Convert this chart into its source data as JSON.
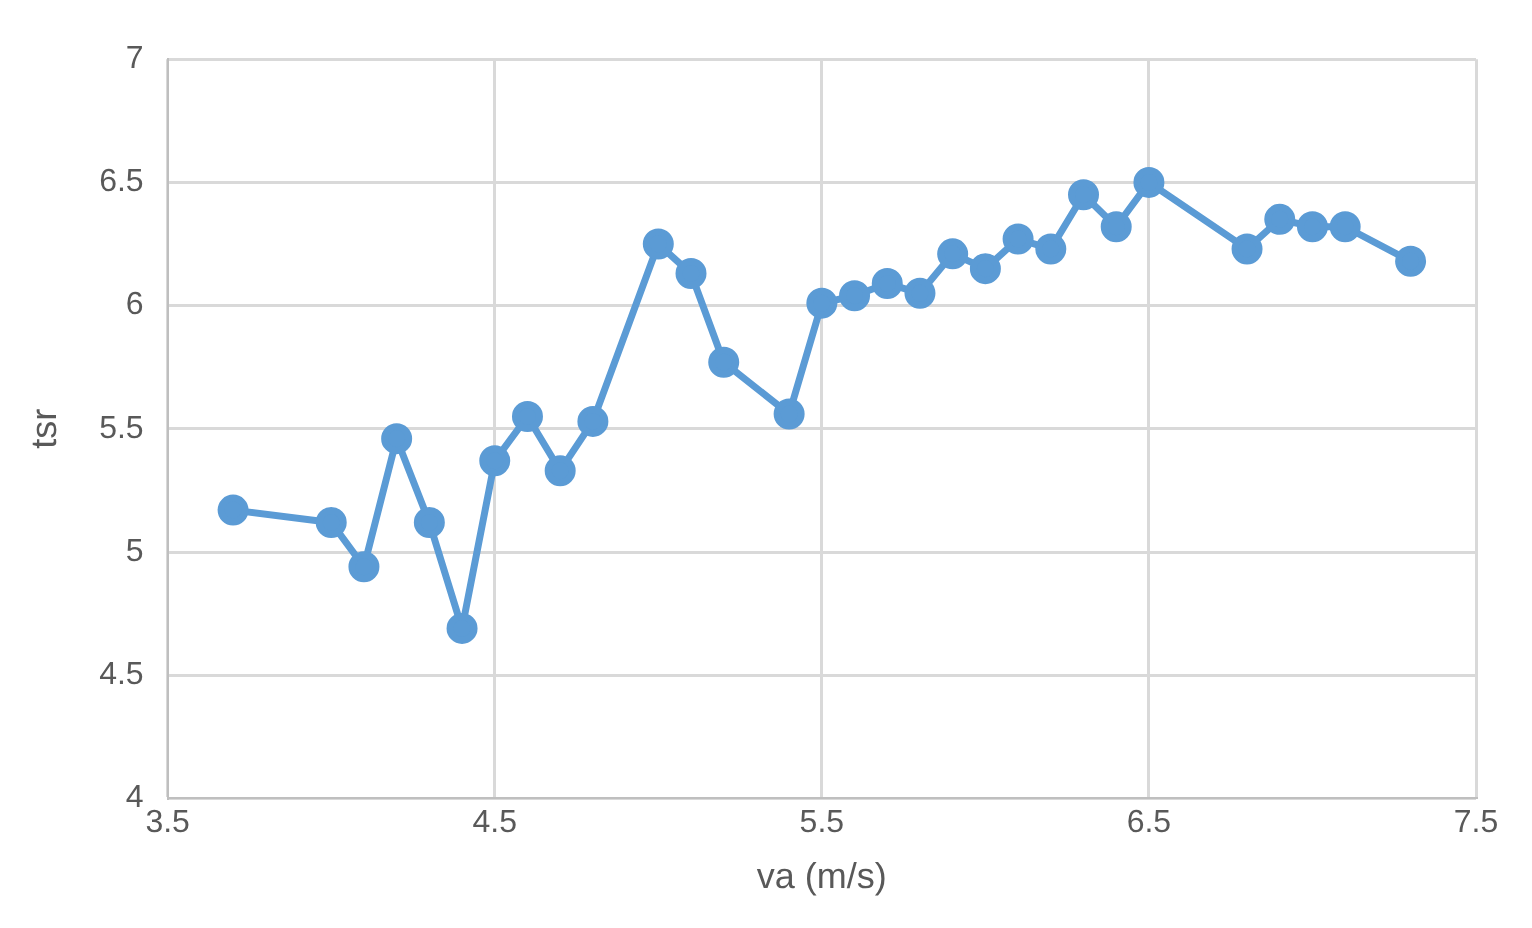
{
  "chart_data": {
    "type": "line",
    "xlabel": "va (m/s)",
    "ylabel": "tsr",
    "x": [
      3.7,
      4.0,
      4.1,
      4.2,
      4.3,
      4.4,
      4.5,
      4.6,
      4.7,
      4.8,
      5.0,
      5.1,
      5.2,
      5.4,
      5.5,
      5.6,
      5.7,
      5.8,
      5.9,
      6.0,
      6.1,
      6.2,
      6.3,
      6.4,
      6.5,
      6.8,
      6.9,
      7.0,
      7.1,
      7.3
    ],
    "series": [
      {
        "color": "#5b9bd5",
        "values": [
          5.17,
          5.12,
          4.94,
          5.46,
          5.12,
          4.69,
          5.37,
          5.55,
          5.33,
          5.53,
          6.25,
          6.13,
          5.77,
          5.56,
          6.01,
          6.04,
          6.09,
          6.05,
          6.21,
          6.15,
          6.27,
          6.23,
          6.45,
          6.32,
          6.5,
          6.23,
          6.35,
          6.32,
          6.32,
          6.18
        ]
      }
    ],
    "xlim": [
      3.5,
      7.5
    ],
    "xticks": [
      3.5,
      4.5,
      5.5,
      6.5,
      7.5
    ],
    "ylim": [
      4,
      7
    ],
    "yticks": [
      4,
      4.5,
      5,
      5.5,
      6,
      6.5,
      7
    ],
    "grid": true,
    "marker": "circle",
    "line_style": "solid",
    "legend": false
  }
}
